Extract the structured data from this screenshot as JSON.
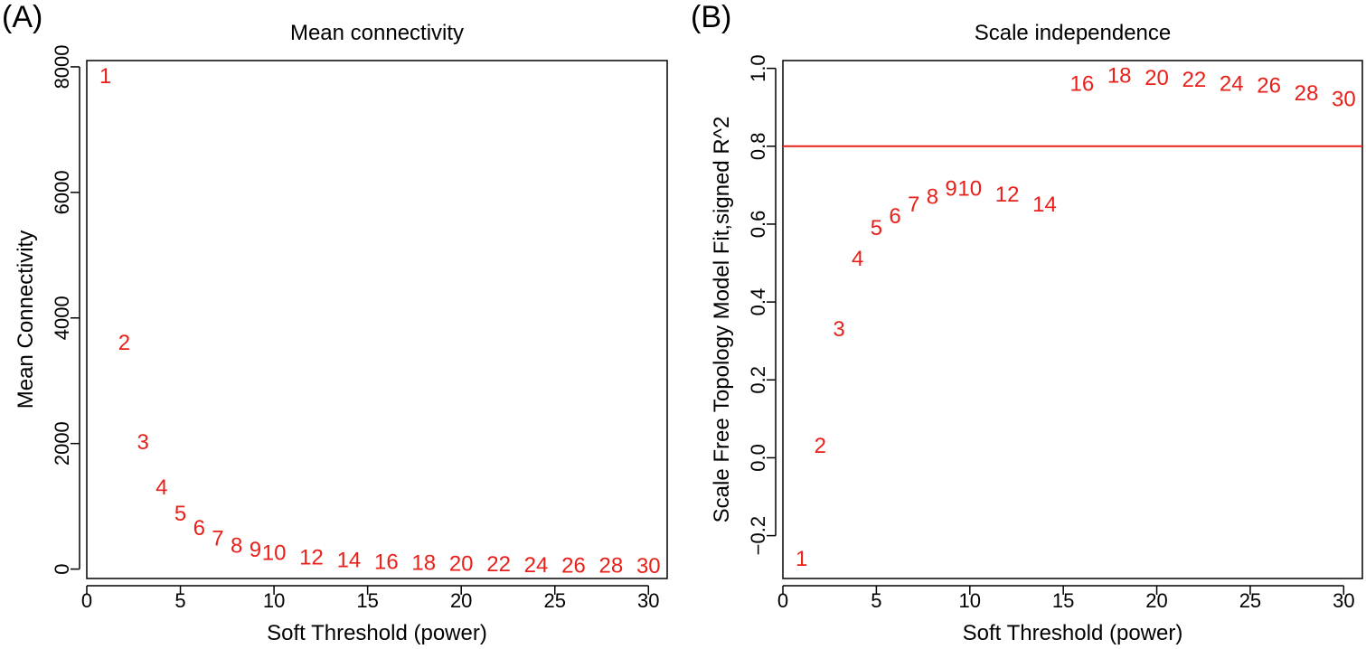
{
  "colors": {
    "points": "#e8201a",
    "axis": "#000000",
    "refline": "#e8201a"
  },
  "chart_data": [
    {
      "panel_label": "(A)",
      "type": "scatter",
      "marker": "text-label",
      "title": "Mean connectivity",
      "xlabel": "Soft Threshold (power)",
      "ylabel": "Mean Connectivity",
      "xlim": [
        0,
        31
      ],
      "ylim": [
        -150,
        8100
      ],
      "xticks": [
        0,
        5,
        10,
        15,
        20,
        25,
        30
      ],
      "yticks": [
        0,
        2000,
        4000,
        6000,
        8000
      ],
      "points": [
        {
          "x": 1,
          "y": 7850,
          "label": "1"
        },
        {
          "x": 2,
          "y": 3600,
          "label": "2"
        },
        {
          "x": 3,
          "y": 2020,
          "label": "3"
        },
        {
          "x": 4,
          "y": 1300,
          "label": "4"
        },
        {
          "x": 5,
          "y": 880,
          "label": "5"
        },
        {
          "x": 6,
          "y": 650,
          "label": "6"
        },
        {
          "x": 7,
          "y": 480,
          "label": "7"
        },
        {
          "x": 8,
          "y": 370,
          "label": "8"
        },
        {
          "x": 9,
          "y": 300,
          "label": "9"
        },
        {
          "x": 10,
          "y": 250,
          "label": "10"
        },
        {
          "x": 12,
          "y": 180,
          "label": "12"
        },
        {
          "x": 14,
          "y": 140,
          "label": "14"
        },
        {
          "x": 16,
          "y": 110,
          "label": "16"
        },
        {
          "x": 18,
          "y": 95,
          "label": "18"
        },
        {
          "x": 20,
          "y": 80,
          "label": "20"
        },
        {
          "x": 22,
          "y": 70,
          "label": "22"
        },
        {
          "x": 24,
          "y": 60,
          "label": "24"
        },
        {
          "x": 26,
          "y": 55,
          "label": "26"
        },
        {
          "x": 28,
          "y": 50,
          "label": "28"
        },
        {
          "x": 30,
          "y": 45,
          "label": "30"
        }
      ],
      "hline": null
    },
    {
      "panel_label": "(B)",
      "type": "scatter",
      "marker": "text-label",
      "title": "Scale independence",
      "xlabel": "Soft Threshold (power)",
      "ylabel": "Scale Free Topology Model Fit,signed R^2",
      "xlim": [
        0,
        31
      ],
      "ylim": [
        -0.31,
        1.02
      ],
      "xticks": [
        0,
        5,
        10,
        15,
        20,
        25,
        30
      ],
      "yticks": [
        -0.2,
        0.0,
        0.2,
        0.4,
        0.6,
        0.8,
        1.0
      ],
      "ytick_labels": [
        "−0.2",
        "0.0",
        "0.2",
        "0.4",
        "0.6",
        "0.8",
        "1.0"
      ],
      "points": [
        {
          "x": 1,
          "y": -0.26,
          "label": "1"
        },
        {
          "x": 2,
          "y": 0.03,
          "label": "2"
        },
        {
          "x": 3,
          "y": 0.33,
          "label": "3"
        },
        {
          "x": 4,
          "y": 0.51,
          "label": "4"
        },
        {
          "x": 5,
          "y": 0.59,
          "label": "5"
        },
        {
          "x": 6,
          "y": 0.62,
          "label": "6"
        },
        {
          "x": 7,
          "y": 0.65,
          "label": "7"
        },
        {
          "x": 8,
          "y": 0.67,
          "label": "8"
        },
        {
          "x": 9,
          "y": 0.69,
          "label": "9"
        },
        {
          "x": 10,
          "y": 0.69,
          "label": "10"
        },
        {
          "x": 12,
          "y": 0.675,
          "label": "12"
        },
        {
          "x": 14,
          "y": 0.65,
          "label": "14"
        },
        {
          "x": 16,
          "y": 0.96,
          "label": "16"
        },
        {
          "x": 18,
          "y": 0.98,
          "label": "18"
        },
        {
          "x": 20,
          "y": 0.975,
          "label": "20"
        },
        {
          "x": 22,
          "y": 0.97,
          "label": "22"
        },
        {
          "x": 24,
          "y": 0.96,
          "label": "24"
        },
        {
          "x": 26,
          "y": 0.955,
          "label": "26"
        },
        {
          "x": 28,
          "y": 0.935,
          "label": "28"
        },
        {
          "x": 30,
          "y": 0.92,
          "label": "30"
        }
      ],
      "hline": 0.8
    }
  ]
}
